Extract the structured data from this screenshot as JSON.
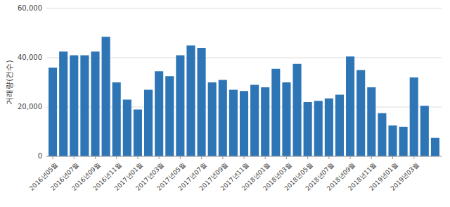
{
  "chart_data": {
    "type": "bar",
    "y_label": "거래량(건수)",
    "categories": [
      "2016년05월",
      null,
      "2016년07월",
      null,
      "2016년09월",
      null,
      "2016년11월",
      null,
      "2017년01월",
      null,
      "2017년03월",
      null,
      "2017년05월",
      null,
      "2017년07월",
      null,
      "2017년09월",
      null,
      "2017년11월",
      null,
      "2018년01월",
      null,
      "2018년03월",
      null,
      "2018년05월",
      null,
      "2018년07월",
      null,
      "2018년09월",
      null,
      "2018년11월",
      null,
      "2019년01월",
      null,
      "2019년03월",
      null,
      null
    ],
    "values": [
      36000,
      42500,
      41000,
      41000,
      42500,
      48500,
      30000,
      23000,
      19000,
      27000,
      34500,
      32500,
      41000,
      45000,
      44000,
      30000,
      31000,
      27000,
      26500,
      29000,
      28000,
      35500,
      30000,
      37500,
      22000,
      22500,
      23500,
      25000,
      40500,
      35000,
      28000,
      17500,
      12500,
      12000,
      32000,
      20500,
      7500
    ],
    "color": "#2e75b6",
    "ylim": [
      0,
      60000
    ],
    "yticks": [
      0,
      {
        "value": 20000,
        "label": "20,000"
      },
      {
        "value": 40000,
        "label": "40,000"
      },
      {
        "value": 60000,
        "label": "60,000"
      }
    ],
    "grid": true
  }
}
